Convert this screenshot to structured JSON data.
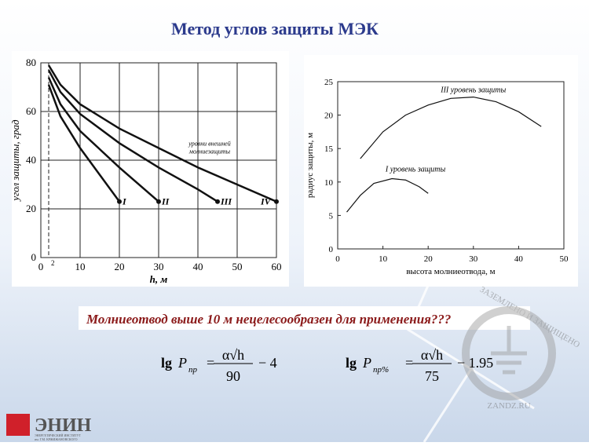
{
  "title": "Метод углов защиты МЭК",
  "chart_data": [
    {
      "type": "line",
      "xlabel": "h,  м",
      "ylabel": "угол защиты, град",
      "xlim": [
        0,
        60
      ],
      "ylim": [
        0,
        80
      ],
      "xticks": [
        0,
        10,
        20,
        30,
        40,
        50,
        60
      ],
      "yticks": [
        0,
        20,
        40,
        60,
        80
      ],
      "grid": true,
      "reference_x": 2,
      "color": "#111111",
      "annotation": [
        "уровни внешней",
        "молниезащиты"
      ],
      "series": [
        {
          "name": "I",
          "x": [
            2,
            5,
            10,
            15,
            20
          ],
          "values": [
            71,
            58,
            45,
            34,
            23
          ]
        },
        {
          "name": "II",
          "x": [
            2,
            5,
            10,
            20,
            30
          ],
          "values": [
            74,
            63,
            52,
            37,
            23
          ]
        },
        {
          "name": "III",
          "x": [
            2,
            5,
            10,
            20,
            30,
            40,
            45
          ],
          "values": [
            77,
            68,
            59,
            47,
            37,
            28,
            23
          ]
        },
        {
          "name": "IV",
          "x": [
            2,
            5,
            10,
            20,
            30,
            40,
            50,
            60
          ],
          "values": [
            79,
            71,
            63,
            53,
            45,
            37,
            30,
            23
          ]
        }
      ]
    },
    {
      "type": "line",
      "xlabel": "высота молниеотвода,  м",
      "ylabel": "радиус защиты,  м",
      "xlim": [
        0,
        50
      ],
      "ylim": [
        0,
        25
      ],
      "xticks": [
        0,
        10,
        20,
        30,
        40,
        50
      ],
      "yticks": [
        0,
        5,
        10,
        15,
        20,
        25
      ],
      "grid": false,
      "color": "#111111",
      "series": [
        {
          "name": "III уровень защиты",
          "x": [
            5,
            10,
            15,
            20,
            25,
            30,
            35,
            40,
            45
          ],
          "values": [
            13.5,
            17.5,
            20,
            21.5,
            22.5,
            22.7,
            22,
            20.5,
            18.3
          ]
        },
        {
          "name": "I уровень защиты",
          "x": [
            2,
            5,
            8,
            12,
            15,
            18,
            20
          ],
          "values": [
            5.5,
            8,
            9.8,
            10.5,
            10.3,
            9.3,
            8.3
          ]
        }
      ]
    }
  ],
  "banner": "Молниеотвод выше 10 м нецелесообразен для применения???",
  "formulas": [
    {
      "lg": "lg",
      "p": "P",
      "sub": "пр",
      "num": "α√h",
      "den": "90",
      "tail": "− 4"
    },
    {
      "lg": "lg",
      "p": "P",
      "sub": "пр%",
      "num": "α√h",
      "den": "75",
      "tail": "− 1.95"
    }
  ],
  "logo": {
    "name": "ЭНИН",
    "line1": "ЭНЕРГЕТИЧЕСКИЙ ИНСТИТУТ",
    "line2": "им. Г.М. КРЖИЖАНОВСКОГО"
  },
  "watermark": {
    "ring": "ЗАЗЕМЛЕНО И ЗАЩИЩЕНО",
    "site": "ZANDZ.RU"
  }
}
